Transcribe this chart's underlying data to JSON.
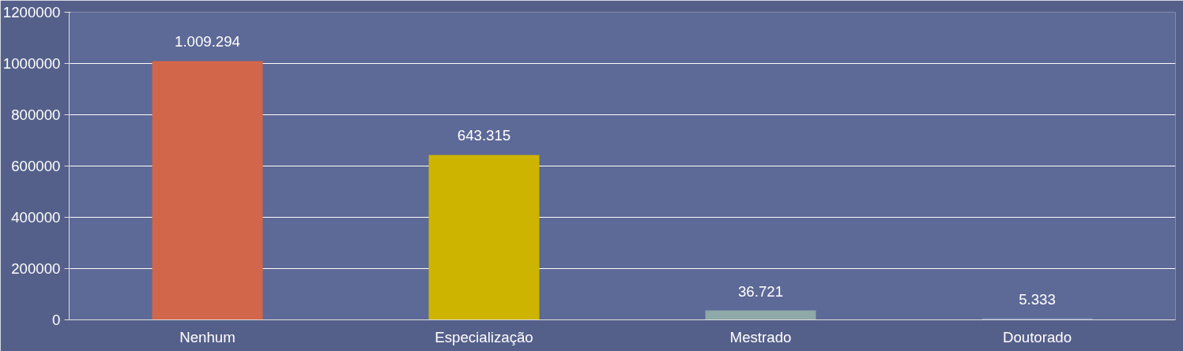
{
  "chart_data": {
    "type": "bar",
    "categories": [
      "Nenhum",
      "Especialização",
      "Mestrado",
      "Doutorado"
    ],
    "values": [
      1009294,
      643315,
      36721,
      5333
    ],
    "value_labels": [
      "1.009.294",
      "643.315",
      "36.721",
      "5.333"
    ],
    "colors": [
      "#d2664a",
      "#ccb400",
      "#8fa8a8",
      "#8a95c0"
    ],
    "ylim": [
      0,
      1200000
    ],
    "yticks": [
      0,
      200000,
      400000,
      600000,
      800000,
      1000000,
      1200000
    ],
    "grid": "y"
  }
}
